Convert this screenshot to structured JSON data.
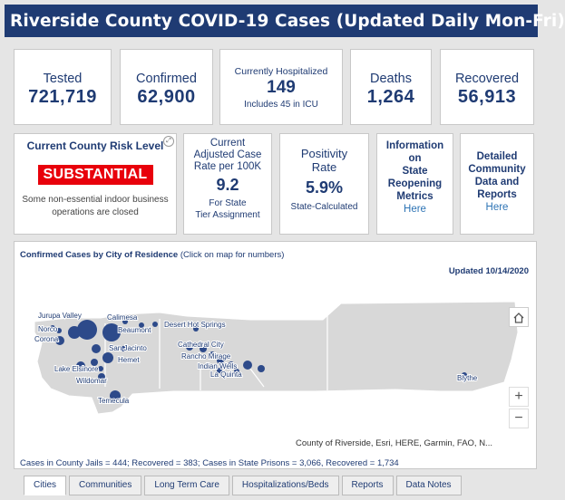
{
  "header": {
    "title": "Riverside County COVID-19 Cases (Updated Daily Mon-Fri)"
  },
  "stats": {
    "tested": {
      "label": "Tested",
      "value": "721,719"
    },
    "confirmed": {
      "label": "Confirmed",
      "value": "62,900"
    },
    "hospitalized": {
      "label": "Currently Hospitalized",
      "value": "149",
      "sub": "Includes 45 in ICU"
    },
    "deaths": {
      "label": "Deaths",
      "value": "1,264"
    },
    "recovered": {
      "label": "Recovered",
      "value": "56,913"
    }
  },
  "risk": {
    "title": "Current County Risk Level",
    "level": "SUBSTANTIAL",
    "note_line1": "Some non-essential indoor business",
    "note_line2": "operations are closed",
    "level_color": "#e8000b"
  },
  "case_rate": {
    "line1": "Current",
    "line2": "Adjusted Case",
    "line3": "Rate per 100K",
    "value": "9.2",
    "sub1": "For State",
    "sub2": "Tier Assignment"
  },
  "positivity": {
    "line1": "Positivity",
    "line2": "Rate",
    "value": "5.9%",
    "sub": "State-Calculated"
  },
  "reopening": {
    "line1": "Information",
    "line2": "on",
    "line3": "State",
    "line4": "Reopening",
    "line5": "Metrics",
    "link": "Here"
  },
  "community": {
    "line1": "Detailed",
    "line2": "Community",
    "line3": "Data and",
    "line4": "Reports",
    "link": "Here"
  },
  "map": {
    "title_bold": "Confirmed Cases by City of Residence",
    "title_rest": " (Click on map for numbers)",
    "updated": "Updated 10/14/2020",
    "home_icon": "home-icon",
    "zoom_in": "+",
    "zoom_out": "−",
    "attribution": "County of Riverside, Esri, HERE, Garmin, FAO, N...",
    "jails_note": "Cases in County Jails = 444; Recovered = 383; Cases in State Prisons = 3,066, Recovered = 1,734",
    "cities": {
      "jurupa_valley": "Jurupa Valley",
      "calimesa": "Calimesa",
      "norco": "Norco",
      "beaumont": "Beaumont",
      "corona": "Corona",
      "san_jacinto": "San Jacinto",
      "hemet": "Hemet",
      "lake_elsinore": "Lake Elsinore",
      "wildomar": "Wildomar",
      "temecula": "Temecula",
      "desert_hot_springs": "Desert Hot Springs",
      "cathedral_city": "Cathedral City",
      "rancho_mirage": "Rancho Mirage",
      "indian_wells": "Indian Wells",
      "la_quinta": "La Quinta",
      "blythe": "Blythe"
    },
    "bubble_color": "#2d4a8a"
  },
  "tabs": [
    "Cities",
    "Communities",
    "Long Term Care",
    "Hospitalizations/Beds",
    "Reports",
    "Data Notes"
  ]
}
